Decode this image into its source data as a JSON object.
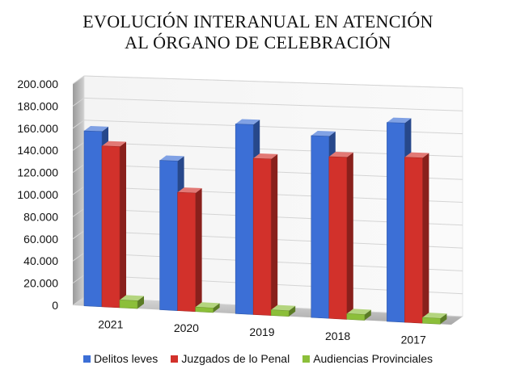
{
  "chart_data": {
    "type": "bar",
    "title_lines": [
      "EVOLUCIÓN INTERANUAL EN ATENCIÓN",
      "AL ÓRGANO DE CELEBRACIÓN"
    ],
    "categories": [
      "2021",
      "2020",
      "2019",
      "2018",
      "2017"
    ],
    "series": [
      {
        "name": "Delitos leves",
        "color": "#3c6fd6",
        "values": [
          158000,
          134000,
          169000,
          161000,
          175000
        ]
      },
      {
        "name": "Juzgados de lo Penal",
        "color": "#d2312b",
        "values": [
          145000,
          106000,
          139000,
          143000,
          145000
        ]
      },
      {
        "name": "Audiencias Provinciales",
        "color": "#8cbf3a",
        "values": [
          7000,
          4000,
          5000,
          5000,
          5000
        ]
      }
    ],
    "yticks": [
      "0",
      "20.000",
      "40.000",
      "60.000",
      "80.000",
      "100.000",
      "120.000",
      "140.000",
      "160.000",
      "180.000",
      "200.000"
    ],
    "ylim": [
      0,
      200000
    ],
    "grid": true,
    "legend": "bottom"
  }
}
